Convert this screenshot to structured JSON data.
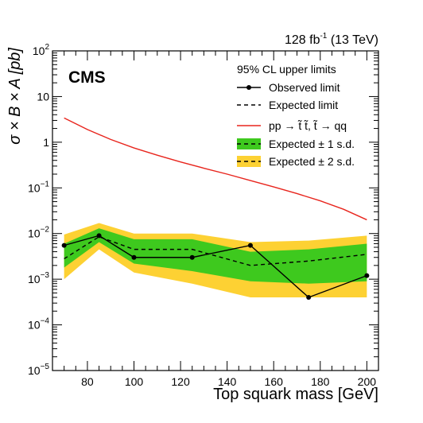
{
  "chart_data": {
    "type": "line",
    "experiment": "CMS",
    "lumi_label": "128 fb",
    "lumi_exp": "-1",
    "lumi_energy": " (13 TeV)",
    "xlabel": "Top squark mass [GeV]",
    "ylabel": "σ × B × A [pb]",
    "xlim": [
      65,
      205
    ],
    "ylim": [
      1e-05,
      100
    ],
    "y_scale": "log",
    "x_ticks": [
      "80",
      "100",
      "120",
      "140",
      "160",
      "180",
      "200"
    ],
    "y_ticks": [
      {
        "base": "10",
        "exp": "−5"
      },
      {
        "base": "10",
        "exp": "−4"
      },
      {
        "base": "10",
        "exp": "−3"
      },
      {
        "base": "10",
        "exp": "−2"
      },
      {
        "base": "10",
        "exp": "−1"
      },
      {
        "base": "1",
        "exp": ""
      },
      {
        "base": "10",
        "exp": ""
      },
      {
        "base": "10",
        "exp": "2"
      }
    ],
    "legend": {
      "title": "95% CL upper limits",
      "placement": "top-right",
      "entries": {
        "observed": "Observed limit",
        "expected": "Expected limit",
        "theory": "pp → t̃ t̃,  t̃ → qq",
        "band1": "Expected ± 1 s.d.",
        "band2": "Expected ± 2 s.d."
      }
    },
    "x": [
      70,
      85,
      100,
      125,
      150,
      175,
      200
    ],
    "series": [
      {
        "key": "observed",
        "values": [
          0.0055,
          0.009,
          0.003,
          0.003,
          0.0055,
          0.0004,
          0.0012
        ]
      },
      {
        "key": "expected",
        "values": [
          0.0028,
          0.0085,
          0.0045,
          0.0045,
          0.002,
          0.0025,
          0.0035
        ]
      },
      {
        "key": "band1_low",
        "values": [
          0.0018,
          0.0065,
          0.0022,
          0.0015,
          0.0009,
          0.0008,
          0.0009
        ]
      },
      {
        "key": "band1_high",
        "values": [
          0.006,
          0.013,
          0.0075,
          0.0075,
          0.004,
          0.0045,
          0.006
        ]
      },
      {
        "key": "band2_low",
        "values": [
          0.001,
          0.0045,
          0.0014,
          0.0008,
          0.0004,
          0.0004,
          0.0004
        ]
      },
      {
        "key": "band2_high",
        "values": [
          0.0095,
          0.017,
          0.01,
          0.01,
          0.0065,
          0.007,
          0.009
        ]
      }
    ],
    "theory_curve": {
      "x": [
        70,
        80,
        90,
        100,
        110,
        120,
        130,
        140,
        150,
        160,
        170,
        180,
        190,
        200
      ],
      "values": [
        3.4,
        1.9,
        1.15,
        0.75,
        0.52,
        0.37,
        0.27,
        0.2,
        0.145,
        0.105,
        0.075,
        0.052,
        0.034,
        0.02
      ]
    },
    "colors": {
      "band1": "#3ec91e",
      "band2": "#fdd133",
      "theory": "#e8251d",
      "observed": "#000000",
      "expected": "#000000"
    },
    "grid": false
  }
}
